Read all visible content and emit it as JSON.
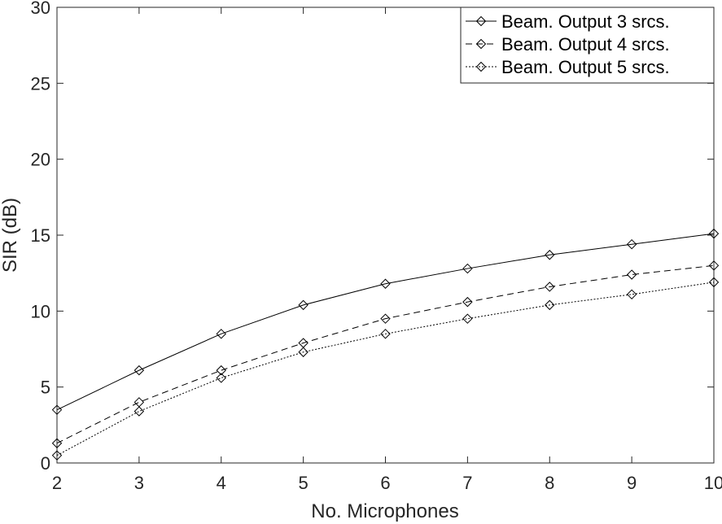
{
  "chart_data": {
    "type": "line",
    "title": "",
    "xlabel": "No. Microphones",
    "ylabel": "SIR (dB)",
    "xlim": [
      2,
      10
    ],
    "ylim": [
      0,
      30
    ],
    "x_ticks": [
      "2",
      "3",
      "4",
      "5",
      "6",
      "7",
      "8",
      "9",
      "10"
    ],
    "y_ticks": [
      "0",
      "5",
      "10",
      "15",
      "20",
      "25",
      "30"
    ],
    "grid": false,
    "legend_position": "top-right",
    "x": [
      2,
      3,
      4,
      5,
      6,
      7,
      8,
      9,
      10
    ],
    "series": [
      {
        "name": "Beam. Output 3 srcs.",
        "line_style": "solid",
        "marker": "diamond",
        "color": "#000000",
        "values": [
          3.5,
          6.1,
          8.5,
          10.4,
          11.8,
          12.8,
          13.7,
          14.4,
          15.1
        ]
      },
      {
        "name": "Beam. Output 4 srcs.",
        "line_style": "dashed",
        "marker": "diamond",
        "color": "#000000",
        "values": [
          1.3,
          4.0,
          6.1,
          7.9,
          9.5,
          10.6,
          11.6,
          12.4,
          13.0
        ]
      },
      {
        "name": "Beam. Output 5 srcs.",
        "line_style": "dotted",
        "marker": "diamond",
        "color": "#000000",
        "values": [
          0.5,
          3.4,
          5.6,
          7.3,
          8.5,
          9.5,
          10.4,
          11.1,
          11.9
        ]
      }
    ]
  }
}
